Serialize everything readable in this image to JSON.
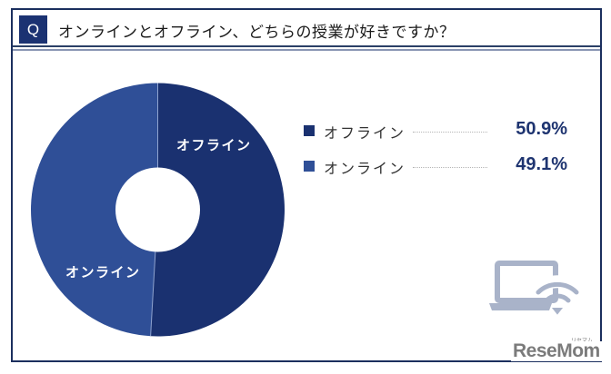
{
  "question": {
    "badge": "Q",
    "title": "オンラインとオフライン、どちらの授業が好きですか？"
  },
  "chart_data": {
    "type": "pie",
    "variant": "donut",
    "title": "オンラインとオフライン、どちらの授業が好きですか？",
    "categories": [
      "オフライン",
      "オンライン"
    ],
    "values": [
      50.9,
      49.1
    ],
    "unit": "%",
    "colors": [
      "#1a3170",
      "#2f4f97"
    ],
    "start_angle": "12 o'clock, clockwise",
    "legend_position": "right"
  },
  "slices": [
    {
      "label": "オフライン",
      "value": 50.9,
      "color": "#1a3170"
    },
    {
      "label": "オンライン",
      "value": 49.1,
      "color": "#2f4f97"
    }
  ],
  "legend": [
    {
      "label": "オフライン",
      "value_text": "50.9%",
      "color": "#1a3170"
    },
    {
      "label": "オンライン",
      "value_text": "49.1%",
      "color": "#2f4f97"
    }
  ],
  "icon": {
    "name": "laptop-wifi-icon",
    "color": "#a9b3c9"
  },
  "watermark": {
    "text": "ReseMom",
    "kana": "リセマム"
  },
  "colors": {
    "frame": "#1b2f5e",
    "badge": "#1b3272",
    "value_text": "#1e3470"
  }
}
